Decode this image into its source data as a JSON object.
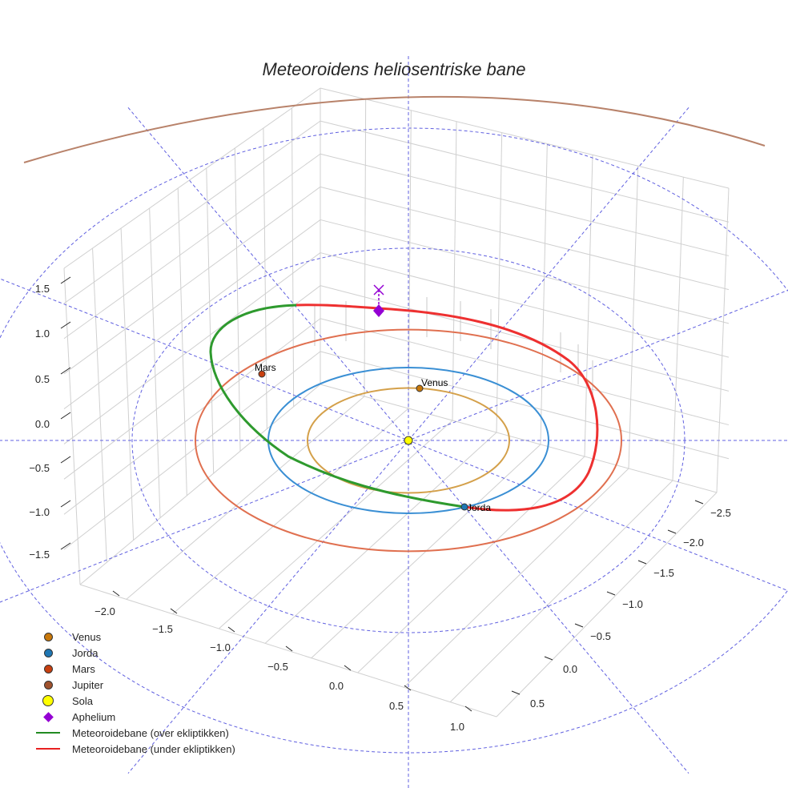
{
  "chart_data": {
    "type": "line",
    "title": "Meteoroidens heliosentriske bane",
    "axes": {
      "x_ticks": [
        "−2.0",
        "−1.5",
        "−1.0",
        "−0.5",
        "0.0",
        "0.5",
        "1.0"
      ],
      "y_ticks": [
        "−2.5",
        "−2.0",
        "−1.5",
        "−1.0",
        "−0.5",
        "0.0",
        "0.5"
      ],
      "z_ticks": [
        "1.5",
        "1.0",
        "0.5",
        "0.0",
        "−0.5",
        "−1.0",
        "−1.5"
      ]
    },
    "orbits": [
      {
        "name": "Venus",
        "radius_au": 0.72,
        "color": "#d4a04a"
      },
      {
        "name": "Jorda",
        "radius_au": 1.0,
        "color": "#3a8fd4"
      },
      {
        "name": "Mars",
        "radius_au": 1.52,
        "color": "#e07050"
      },
      {
        "name": "Jupiter",
        "radius_au": 5.2,
        "color": "#b8826a"
      }
    ],
    "planet_labels": {
      "venus": "Venus",
      "earth": "Jorda",
      "mars": "Mars"
    },
    "series": [
      {
        "name": "Meteoroidebane (over ekliptikken)",
        "color": "#2e9a2e"
      },
      {
        "name": "Meteoroidebane (under ekliptikken)",
        "color": "#ee3030"
      }
    ],
    "legend": {
      "placement": "bottom-left",
      "items": [
        {
          "label": "Venus",
          "color": "#c8780a",
          "marker": "circle"
        },
        {
          "label": "Jorda",
          "color": "#1f77b4",
          "marker": "circle"
        },
        {
          "label": "Mars",
          "color": "#c84010",
          "marker": "circle"
        },
        {
          "label": "Jupiter",
          "color": "#a0522d",
          "marker": "circle"
        },
        {
          "label": "Sola",
          "color": "#ffff00",
          "marker": "big-circle"
        },
        {
          "label": "Aphelium",
          "color": "#9400d3",
          "marker": "diamond"
        },
        {
          "label": "Meteoroidebane (over ekliptikken)",
          "color": "#228b22",
          "marker": "line"
        },
        {
          "label": "Meteoroidebane (under ekliptikken)",
          "color": "#e82020",
          "marker": "line"
        }
      ]
    }
  }
}
